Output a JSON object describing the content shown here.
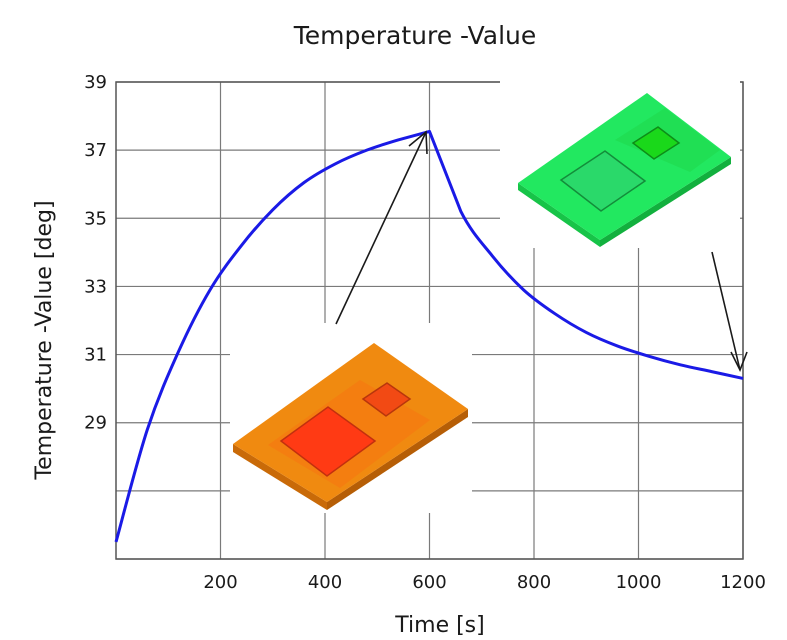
{
  "chart_data": {
    "type": "line",
    "title": "Temperature -Value",
    "xlabel": "Time [s]",
    "ylabel": "Temperature -Value [deg]",
    "xlim": [
      0,
      1200
    ],
    "ylim": [
      25,
      39
    ],
    "xticks": [
      200,
      400,
      600,
      800,
      1000,
      1200
    ],
    "yticks": [
      29,
      31,
      33,
      35,
      37,
      39
    ],
    "grid": true,
    "series": [
      {
        "color": "#1a1ae6",
        "x": [
          0,
          60,
          120,
          180,
          240,
          300,
          360,
          420,
          480,
          540,
          600,
          660,
          720,
          780,
          840,
          900,
          960,
          1020,
          1080,
          1140,
          1200
        ],
        "y": [
          25.5,
          28.8,
          31.1,
          32.9,
          34.2,
          35.25,
          36.05,
          36.6,
          37.0,
          37.3,
          37.55,
          35.2,
          33.9,
          32.9,
          32.2,
          31.65,
          31.25,
          30.95,
          30.7,
          30.5,
          30.3
        ]
      }
    ],
    "insets": [
      {
        "name": "heated-board",
        "color": "#f08a10",
        "hot_color": "#ff3a14"
      },
      {
        "name": "cooled-board",
        "color": "#22e860",
        "hot_color": "#10e020"
      }
    ]
  }
}
